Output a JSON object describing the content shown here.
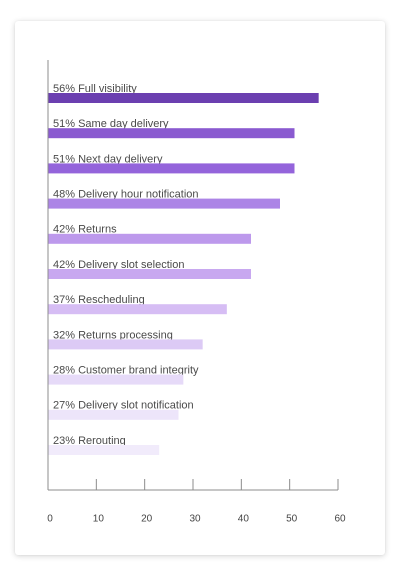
{
  "chart_data": {
    "type": "bar",
    "orientation": "horizontal",
    "title": "",
    "xlabel": "",
    "ylabel": "",
    "categories": [
      "56% Full visibility",
      "51% Same day delivery",
      "51% Next day delivery",
      "48% Delivery hour notification",
      "42% Returns",
      "42% Delivery slot selection",
      "37% Rescheduling",
      "32% Returns processing",
      "28% Customer brand integrity",
      "27% Delivery slot notification",
      "23% Rerouting"
    ],
    "values": [
      56,
      51,
      51,
      48,
      42,
      42,
      37,
      32,
      28,
      27,
      23
    ],
    "colors": [
      "#6b3fb0",
      "#8a5ad0",
      "#9464db",
      "#ac84e6",
      "#bd99ec",
      "#c8a8f0",
      "#d6bdf4",
      "#dccaf5",
      "#e6daf8",
      "#ede5fa",
      "#f1ebfb"
    ],
    "xlim": [
      0,
      60
    ],
    "xticks": [
      "0",
      "10",
      "20",
      "30",
      "40",
      "50",
      "60"
    ],
    "grid": false,
    "legend": "none"
  }
}
